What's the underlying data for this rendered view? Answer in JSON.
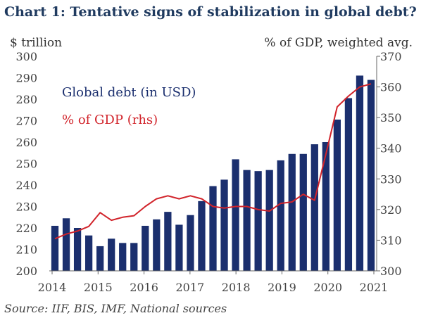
{
  "title": "Chart 1: Tentative signs of stabilization in global debt?",
  "source": "Source: IIF, BIS, IMF, National sources",
  "chart_data": {
    "type": "bar+line",
    "title": "Chart 1: Tentative signs of stabilization in global debt?",
    "ylabel_left": "$ trillion",
    "ylabel_right": "% of GDP, weighted avg.",
    "ylim_left": [
      200,
      300
    ],
    "ylim_right": [
      300,
      370
    ],
    "yticks_left": [
      "200",
      "210",
      "220",
      "230",
      "240",
      "250",
      "260",
      "270",
      "280",
      "290",
      "300"
    ],
    "yticks_right": [
      "300",
      "310",
      "320",
      "330",
      "340",
      "350",
      "360",
      "370"
    ],
    "xticks": [
      "2014",
      "2015",
      "2016",
      "2017",
      "2018",
      "2019",
      "2020",
      "2021"
    ],
    "x_start": 2014.0,
    "x_end": 2021.0,
    "colors": {
      "bars": "#1b2f6e",
      "line": "#d1232a"
    },
    "legend": {
      "placement": "top-left"
    },
    "series": [
      {
        "name": "Global debt (in USD)",
        "axis": "left",
        "type": "bar",
        "x": [
          "2014Q1",
          "2014Q2",
          "2014Q3",
          "2014Q4",
          "2015Q1",
          "2015Q2",
          "2015Q3",
          "2015Q4",
          "2016Q1",
          "2016Q2",
          "2016Q3",
          "2016Q4",
          "2017Q1",
          "2017Q2",
          "2017Q3",
          "2017Q4",
          "2018Q1",
          "2018Q2",
          "2018Q3",
          "2018Q4",
          "2019Q1",
          "2019Q2",
          "2019Q3",
          "2019Q4",
          "2020Q1",
          "2020Q2",
          "2020Q3",
          "2020Q4",
          "2021Q1"
        ],
        "values": [
          221,
          224.5,
          220,
          216.5,
          211.5,
          215,
          213,
          213,
          221,
          224,
          227.5,
          221.5,
          226,
          232.5,
          239.5,
          242.5,
          252,
          247,
          246.5,
          247,
          251.5,
          254.5,
          254.5,
          259,
          260,
          270.5,
          280.5,
          291,
          289
        ]
      },
      {
        "name": "% of GDP (rhs)",
        "axis": "right",
        "type": "line",
        "x": [
          "2014Q1",
          "2014Q2",
          "2014Q3",
          "2014Q4",
          "2015Q1",
          "2015Q2",
          "2015Q3",
          "2015Q4",
          "2016Q1",
          "2016Q2",
          "2016Q3",
          "2016Q4",
          "2017Q1",
          "2017Q2",
          "2017Q3",
          "2017Q4",
          "2018Q1",
          "2018Q2",
          "2018Q3",
          "2018Q4",
          "2019Q1",
          "2019Q2",
          "2019Q3",
          "2019Q4",
          "2020Q1",
          "2020Q2",
          "2020Q3",
          "2020Q4",
          "2021Q1"
        ],
        "values": [
          310.5,
          312,
          313,
          314.5,
          319,
          316.5,
          317.5,
          318,
          321,
          323.5,
          324.5,
          323.5,
          324.5,
          323.5,
          321,
          320.5,
          321,
          321,
          320,
          319.5,
          322,
          322.5,
          325,
          323,
          338,
          353.5,
          357,
          360,
          361
        ]
      }
    ]
  }
}
